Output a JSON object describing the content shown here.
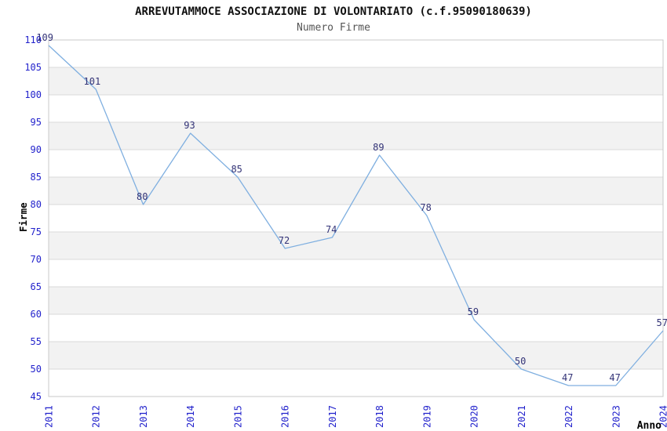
{
  "title": "ARREVUTAMMOCE ASSOCIAZIONE DI VOLONTARIATO (c.f.95090180639)",
  "subtitle": "Numero Firme",
  "colors": {
    "title": "#111111",
    "subtitle": "#555555",
    "line": "#7FAFE0",
    "tick_label": "#2222CC",
    "data_label": "#333377",
    "band": "#F2F2F2",
    "gridline": "#D9D9D9",
    "plot_border": "#C8C8C8",
    "axis_label": "#000000",
    "background": "#FFFFFF"
  },
  "chart_data": {
    "type": "line",
    "title": "ARREVUTAMMOCE ASSOCIAZIONE DI VOLONTARIATO (c.f.95090180639)",
    "subtitle": "Numero Firme",
    "xlabel": "Anno",
    "ylabel": "Firme",
    "x": [
      2011,
      2012,
      2013,
      2014,
      2015,
      2016,
      2017,
      2018,
      2019,
      2020,
      2021,
      2022,
      2023,
      2024
    ],
    "values": [
      109,
      101,
      80,
      93,
      85,
      72,
      74,
      89,
      78,
      59,
      50,
      47,
      47,
      57
    ],
    "ylim": [
      45,
      110
    ],
    "ytick_step": 5,
    "yticks": [
      45,
      50,
      55,
      60,
      65,
      70,
      75,
      80,
      85,
      90,
      95,
      100,
      105,
      110
    ],
    "grid": "horizontal",
    "background_bands": "alternating-gray",
    "legend": "none",
    "markers": "none",
    "data_labels_shown": true
  }
}
